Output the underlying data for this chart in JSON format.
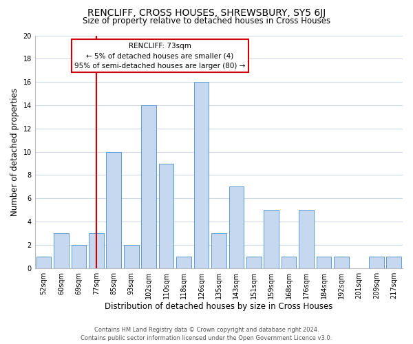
{
  "title": "RENCLIFF, CROSS HOUSES, SHREWSBURY, SY5 6JJ",
  "subtitle": "Size of property relative to detached houses in Cross Houses",
  "xlabel": "Distribution of detached houses by size in Cross Houses",
  "ylabel": "Number of detached properties",
  "bin_labels": [
    "52sqm",
    "60sqm",
    "69sqm",
    "77sqm",
    "85sqm",
    "93sqm",
    "102sqm",
    "110sqm",
    "118sqm",
    "126sqm",
    "135sqm",
    "143sqm",
    "151sqm",
    "159sqm",
    "168sqm",
    "176sqm",
    "184sqm",
    "192sqm",
    "201sqm",
    "209sqm",
    "217sqm"
  ],
  "bar_values": [
    1,
    3,
    2,
    3,
    10,
    2,
    14,
    9,
    1,
    16,
    3,
    7,
    1,
    5,
    1,
    5,
    1,
    1,
    0,
    1,
    1
  ],
  "bar_color": "#c5d8f0",
  "bar_edge_color": "#5b9bd5",
  "vline_x_index": 3.0,
  "vline_color": "#cc0000",
  "annotation_title": "RENCLIFF: 73sqm",
  "annotation_line1": "← 5% of detached houses are smaller (4)",
  "annotation_line2": "95% of semi-detached houses are larger (80) →",
  "annotation_box_color": "#ffffff",
  "annotation_box_edge": "#cc0000",
  "ylim": [
    0,
    20
  ],
  "yticks": [
    0,
    2,
    4,
    6,
    8,
    10,
    12,
    14,
    16,
    18,
    20
  ],
  "footer1": "Contains HM Land Registry data © Crown copyright and database right 2024.",
  "footer2": "Contains public sector information licensed under the Open Government Licence v3.0.",
  "grid_color": "#d0d8e8",
  "title_fontsize": 10,
  "subtitle_fontsize": 8.5,
  "axis_label_fontsize": 8.5,
  "tick_fontsize": 7,
  "footer_fontsize": 6,
  "annotation_fontsize": 7.5
}
